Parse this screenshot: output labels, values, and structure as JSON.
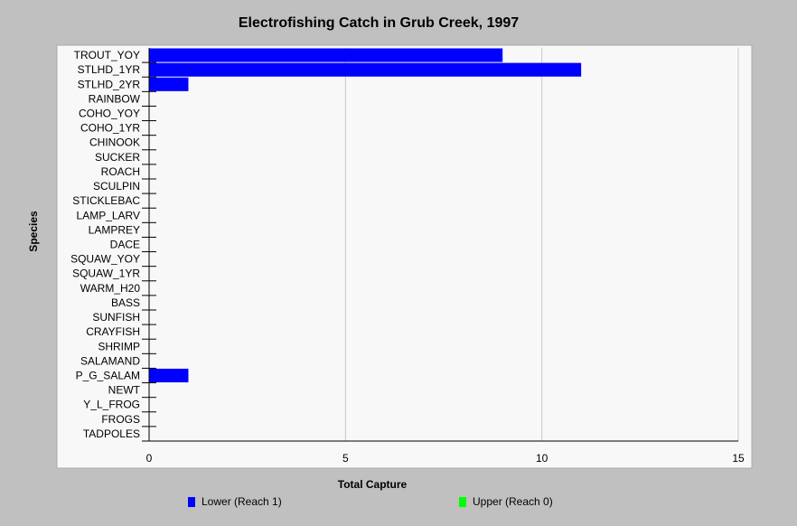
{
  "chart_data": {
    "type": "bar",
    "orientation": "horizontal",
    "title": "Electrofishing Catch in Grub Creek, 1997",
    "xlabel": "Total Capture",
    "ylabel": "Species",
    "xlim": [
      0,
      15
    ],
    "x_ticks": [
      "0",
      "5",
      "10",
      "15"
    ],
    "grid": true,
    "legend_placement": "bottom",
    "categories": [
      "TROUT_YOY",
      "STLHD_1YR",
      "STLHD_2YR",
      "RAINBOW",
      "COHO_YOY",
      "COHO_1YR",
      "CHINOOK",
      "SUCKER",
      "ROACH",
      "SCULPIN",
      "STICKLEBAC",
      "LAMP_LARV",
      "LAMPREY",
      "DACE",
      "SQUAW_YOY",
      "SQUAW_1YR",
      "WARM_H20",
      "BASS",
      "SUNFISH",
      "CRAYFISH",
      "SHRIMP",
      "SALAMAND",
      "P_G_SALAM",
      "NEWT",
      "Y_L_FROG",
      "FROGS",
      "TADPOLES"
    ],
    "series": [
      {
        "name": "Lower (Reach 1)",
        "color": "#0000ff",
        "values": [
          9,
          11,
          1,
          0,
          0,
          0,
          0,
          0,
          0,
          0,
          0,
          0,
          0,
          0,
          0,
          0,
          0,
          0,
          0,
          0,
          0,
          0,
          1,
          0,
          0,
          0,
          0
        ]
      },
      {
        "name": "Upper (Reach 0)",
        "color": "#00ff00",
        "values": [
          0,
          0,
          0,
          0,
          0,
          0,
          0,
          0,
          0,
          0,
          0,
          0,
          0,
          0,
          0,
          0,
          0,
          0,
          0,
          0,
          0,
          0,
          0,
          0,
          0,
          0,
          0
        ]
      }
    ]
  },
  "colors": {
    "background": "#c0c0c0",
    "plot_area": "#f8f8f8",
    "grid": "#c8c8c8"
  }
}
